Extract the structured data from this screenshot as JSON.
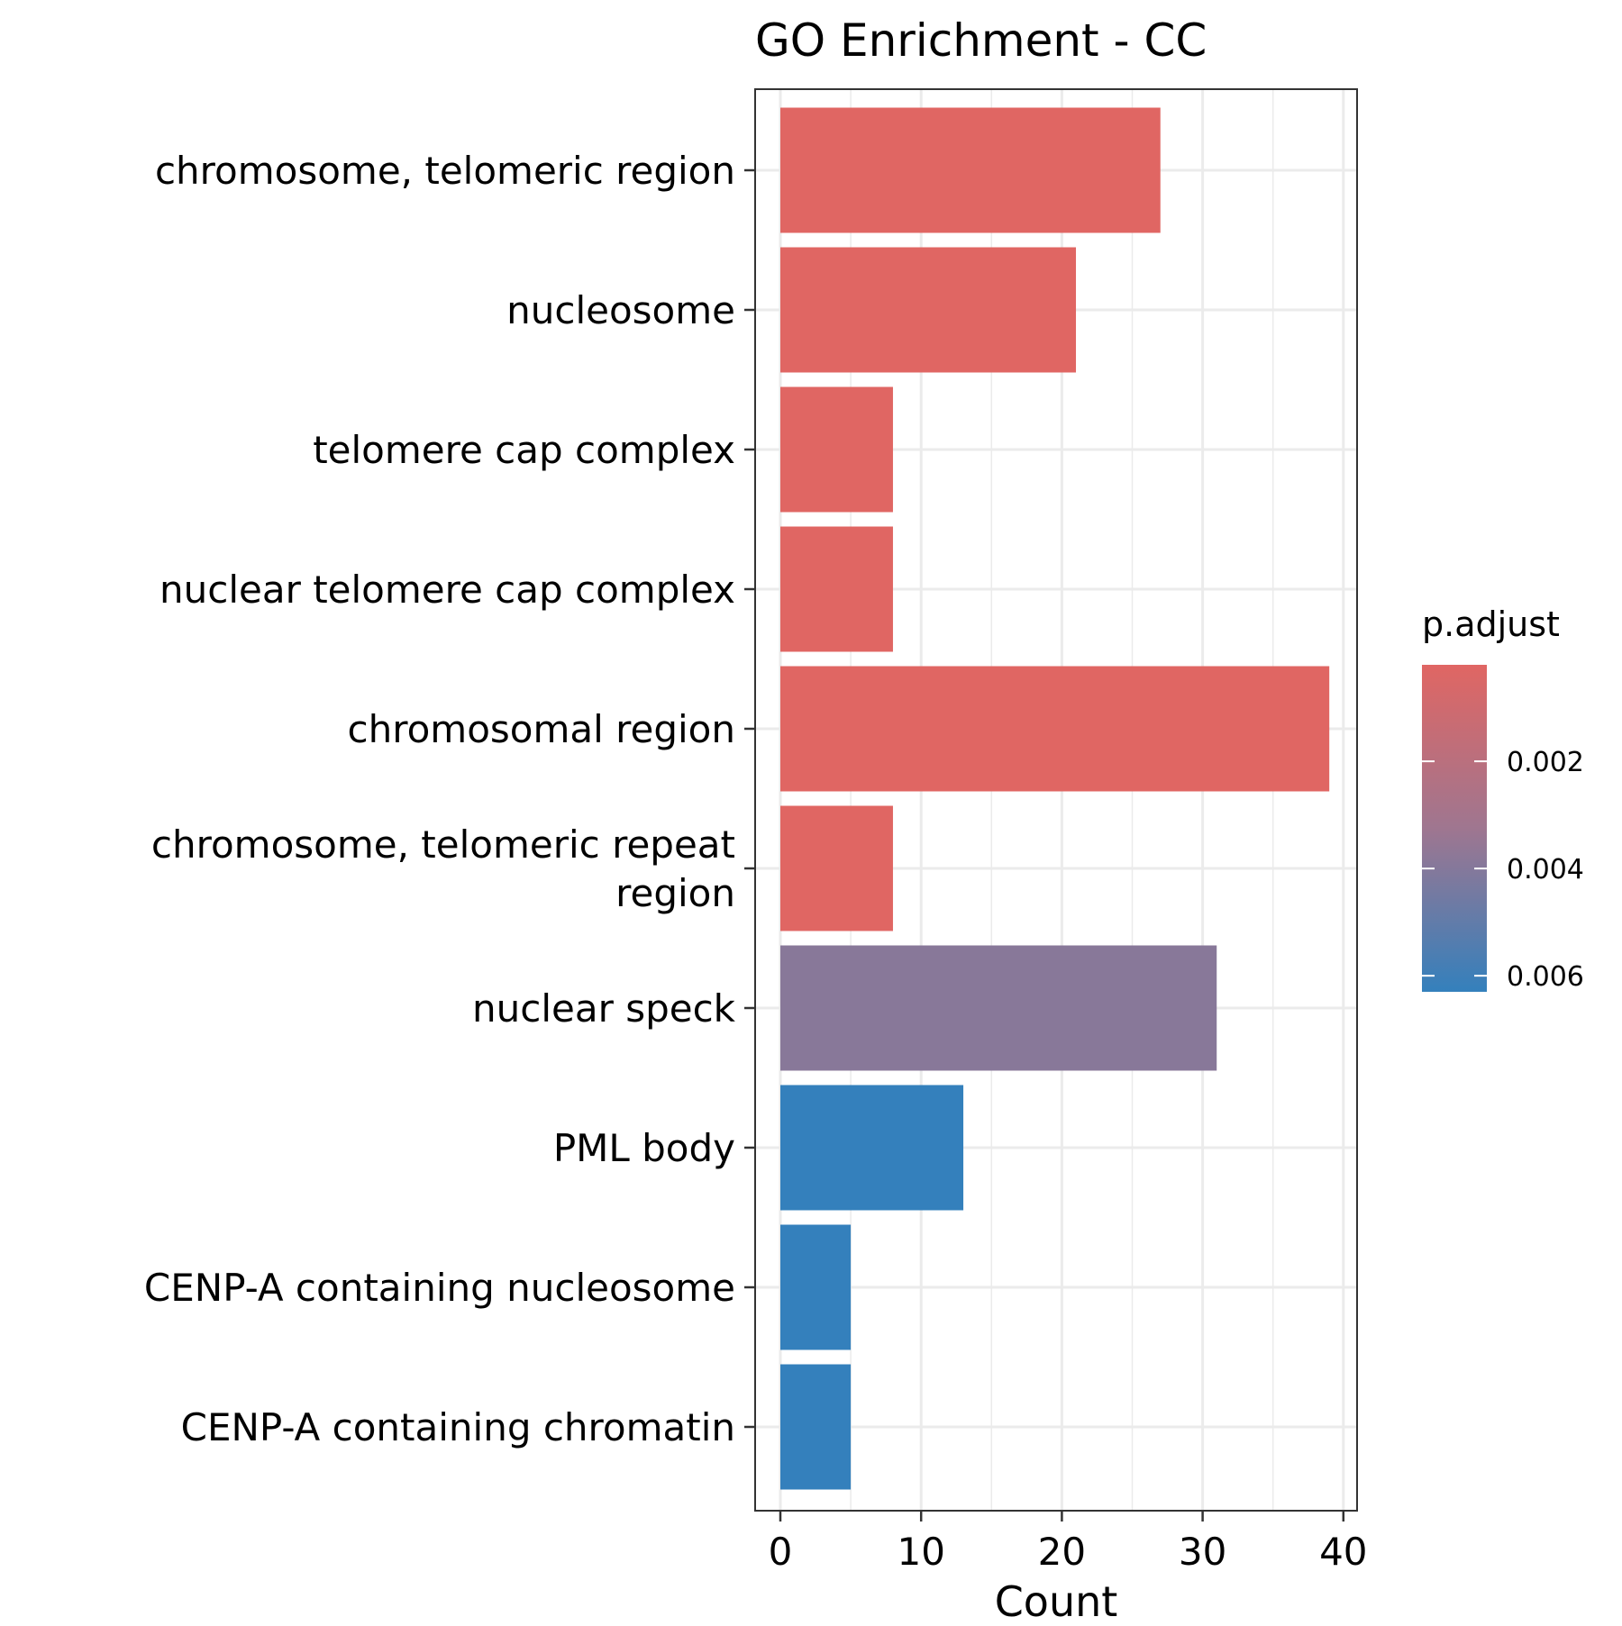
{
  "chart_data": {
    "type": "bar",
    "orientation": "horizontal",
    "title": "GO Enrichment - CC",
    "xlabel": "Count",
    "ylabel": "",
    "xlim": [
      0,
      41
    ],
    "x_ticks": [
      "0",
      "10",
      "20",
      "30",
      "40"
    ],
    "x_tick_values": [
      0,
      10,
      20,
      30,
      40
    ],
    "grid": true,
    "categories": [
      "chromosome, telomeric region",
      "nucleosome",
      "telomere cap complex",
      "nuclear telomere cap complex",
      "chromosomal region",
      "chromosome, telomeric repeat region",
      "nuclear speck",
      "PML body",
      "CENP-A containing nucleosome",
      "CENP-A containing chromatin"
    ],
    "category_label_lines": [
      [
        "chromosome, telomeric region"
      ],
      [
        "nucleosome"
      ],
      [
        "telomere cap complex"
      ],
      [
        "nuclear telomere cap complex"
      ],
      [
        "chromosomal region"
      ],
      [
        "chromosome, telomeric repeat",
        "region"
      ],
      [
        "nuclear speck"
      ],
      [
        "PML body"
      ],
      [
        "CENP-A containing nucleosome"
      ],
      [
        "CENP-A containing chromatin"
      ]
    ],
    "values": [
      27,
      21,
      8,
      8,
      39,
      8,
      31,
      13,
      5,
      5
    ],
    "p_adjust": [
      0.0002,
      0.0002,
      0.0002,
      0.0002,
      0.0002,
      0.0002,
      0.0039,
      0.0063,
      0.0063,
      0.0063
    ],
    "legend": {
      "title": "p.adjust",
      "placement": "right",
      "range": [
        0.0002,
        0.0063
      ],
      "labels": [
        "0.002",
        "0.004",
        "0.006"
      ],
      "label_values": [
        0.002,
        0.004,
        0.006
      ],
      "low_color": "#e06663",
      "high_color": "#3480bc"
    }
  }
}
